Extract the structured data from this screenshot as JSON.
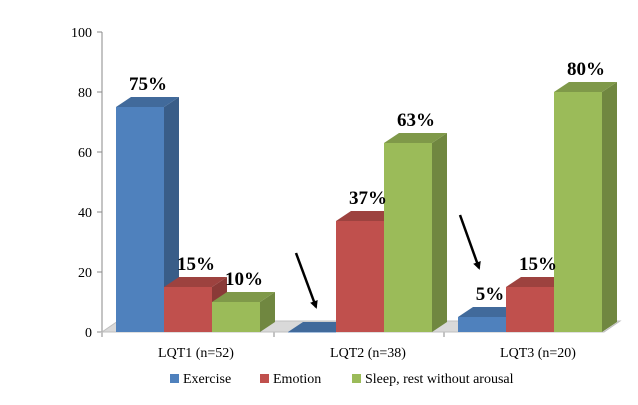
{
  "chart_data": {
    "type": "bar",
    "title": "",
    "xlabel": "",
    "ylabel": "",
    "ylim": [
      0,
      100
    ],
    "yticks": [
      0,
      20,
      40,
      60,
      80,
      100
    ],
    "grid": false,
    "legend_position": "bottom",
    "categories": [
      "LQT1 (n=52)",
      "LQT2 (n=38)",
      "LQT3 (n=20)"
    ],
    "series": [
      {
        "name": "Exercise",
        "color": "#4f81bd",
        "values": [
          75,
          0,
          5
        ],
        "labels": [
          "75%",
          "",
          "5%"
        ]
      },
      {
        "name": "Emotion",
        "color": "#c0504d",
        "values": [
          15,
          37,
          15
        ],
        "labels": [
          "15%",
          "37%",
          "15%"
        ]
      },
      {
        "name": "Sleep, rest without arousal",
        "color": "#9bbb59",
        "values": [
          10,
          63,
          80
        ],
        "labels": [
          "10%",
          "63%",
          "80%"
        ]
      }
    ],
    "annotations": [
      {
        "type": "arrow",
        "category": "LQT2 (n=38)",
        "series": "Exercise",
        "points_to": "zero-height bar"
      },
      {
        "type": "arrow",
        "category": "LQT3 (n=20)",
        "series": "Exercise",
        "points_to": "5% bar"
      }
    ]
  }
}
